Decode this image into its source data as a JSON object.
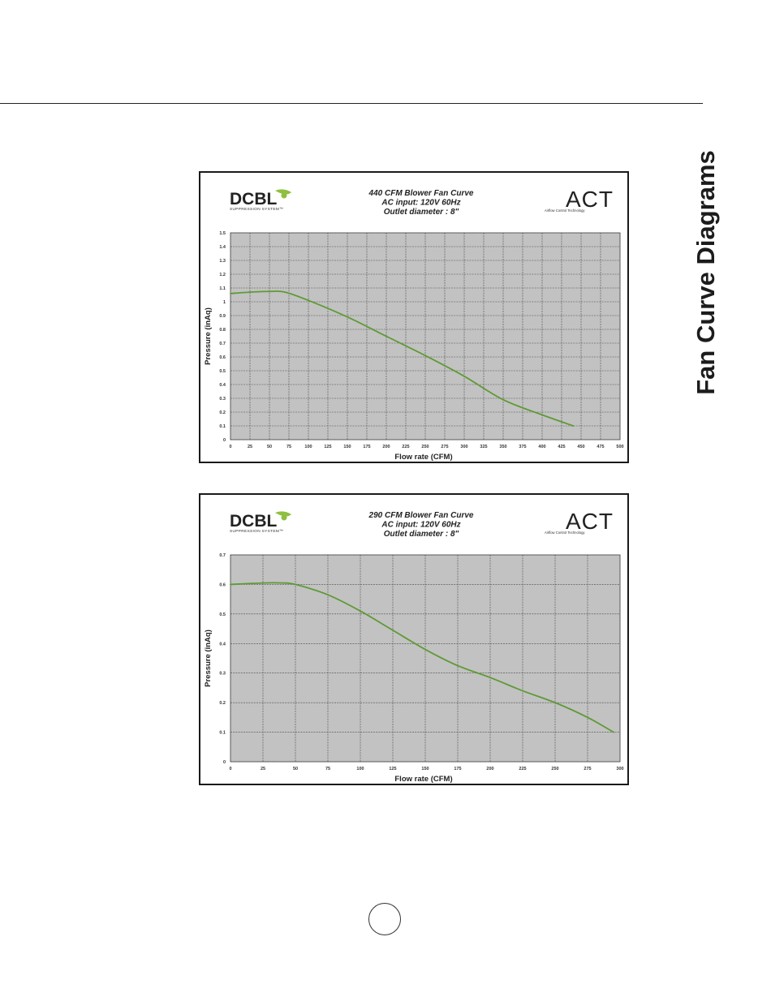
{
  "page": {
    "side_title": "Fan Curve Diagrams",
    "page_number": ""
  },
  "logos": {
    "left_main": "DCBL",
    "left_sub": "SUPPRESSION SYSTEM™",
    "right_main": "ACT",
    "right_sub": "Airflow Control Technology"
  },
  "colors": {
    "plot_bg": "#c2c2c2",
    "grid": "#4a4a4a",
    "curve": "#5f9a36",
    "logo_accent": "#8fbf3f"
  },
  "chart_data": [
    {
      "type": "line",
      "title_lines": [
        "440 CFM Blower Fan Curve",
        "AC input: 120V 60Hz",
        "Outlet diameter : 8\""
      ],
      "xlabel": "Flow rate (CFM)",
      "ylabel": "Pressure (inAq)",
      "xlim": [
        0,
        500
      ],
      "ylim": [
        0,
        1.5
      ],
      "x_ticks": [
        "0",
        "25",
        "50",
        "75",
        "100",
        "125",
        "150",
        "175",
        "200",
        "225",
        "250",
        "275",
        "300",
        "325",
        "350",
        "375",
        "400",
        "425",
        "450",
        "475",
        "500"
      ],
      "y_ticks": [
        "0",
        "0.1",
        "0.2",
        "0.3",
        "0.4",
        "0.5",
        "0.6",
        "0.7",
        "0.8",
        "0.9",
        "1",
        "1.1",
        "1.2",
        "1.3",
        "1.4",
        "1.5"
      ],
      "grid": true,
      "series": [
        {
          "x": [
            0,
            25,
            50,
            70,
            100,
            150,
            200,
            250,
            300,
            350,
            400,
            440
          ],
          "y": [
            1.06,
            1.07,
            1.075,
            1.07,
            1.01,
            0.89,
            0.75,
            0.61,
            0.46,
            0.29,
            0.18,
            0.1
          ]
        }
      ]
    },
    {
      "type": "line",
      "title_lines": [
        "290 CFM Blower Fan Curve",
        "AC input: 120V 60Hz",
        "Outlet diameter : 8\""
      ],
      "xlabel": "Flow rate (CFM)",
      "ylabel": "Pressure (inAq)",
      "xlim": [
        0,
        300
      ],
      "ylim": [
        0,
        0.7
      ],
      "x_ticks": [
        "0",
        "25",
        "50",
        "75",
        "100",
        "125",
        "150",
        "175",
        "200",
        "225",
        "250",
        "275",
        "300"
      ],
      "y_ticks": [
        "0",
        "0.1",
        "0.2",
        "0.3",
        "0.4",
        "0.5",
        "0.6",
        "0.7"
      ],
      "grid": true,
      "series": [
        {
          "x": [
            0,
            25,
            40,
            50,
            75,
            100,
            125,
            150,
            175,
            200,
            225,
            250,
            275,
            295
          ],
          "y": [
            0.6,
            0.605,
            0.605,
            0.6,
            0.565,
            0.51,
            0.445,
            0.38,
            0.325,
            0.285,
            0.24,
            0.2,
            0.15,
            0.1
          ]
        }
      ]
    }
  ]
}
